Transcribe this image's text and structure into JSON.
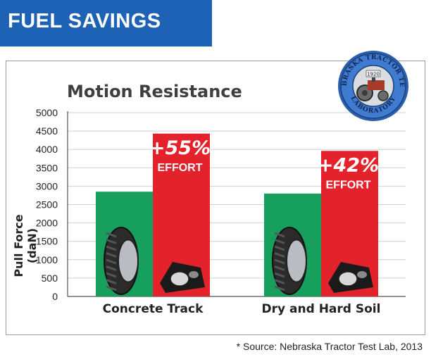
{
  "header": {
    "banner": "FUEL SAVINGS"
  },
  "chart_data": {
    "type": "bar",
    "title": "Motion Resistance",
    "ylabel": "Pull Force (daN)",
    "xlabel": "",
    "ylim": [
      0,
      5000
    ],
    "yticks": [
      0,
      500,
      1000,
      1500,
      2000,
      2500,
      3000,
      3500,
      4000,
      4500,
      5000
    ],
    "categories": [
      "Concrete Track",
      "Dry and Hard Soil"
    ],
    "series": [
      {
        "values": [
          2850,
          2800
        ],
        "color": "#17a05d",
        "icon": "tire-icon"
      },
      {
        "values": [
          4430,
          3960
        ],
        "color": "#e4222c",
        "icon": "track-icon"
      }
    ],
    "annotations": [
      {
        "category": "Concrete Track",
        "percent": "+55%",
        "text": "EFFORT"
      },
      {
        "category": "Dry and Hard Soil",
        "percent": "+42%",
        "text": "EFFORT"
      }
    ],
    "grid": true
  },
  "seal": {
    "top_text": "NEBRASKA TRACTOR TEST",
    "bottom_text": "LABORATORY",
    "year": "1920"
  },
  "footer": {
    "source": "* Source: Nebraska Tractor Test Lab, 2013"
  }
}
